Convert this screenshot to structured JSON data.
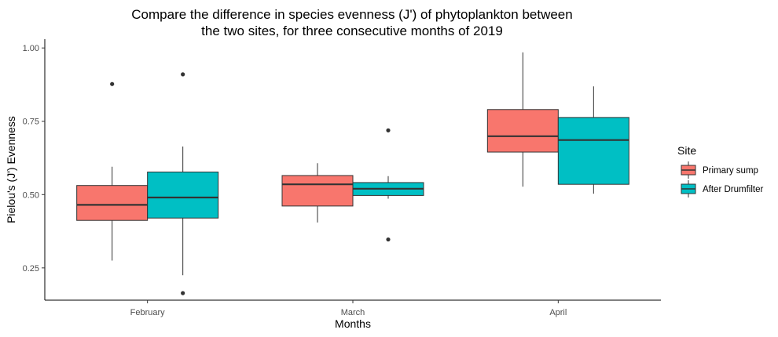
{
  "chart_data": {
    "type": "box",
    "title_lines": [
      "Compare the difference in species evenness (J') of phytoplankton between",
      "the two sites, for three consecutive months of 2019"
    ],
    "xlabel": "Months",
    "ylabel": "Pielou's (J') Evenness",
    "categories": [
      "February",
      "March",
      "April"
    ],
    "yticks": [
      0.25,
      0.5,
      0.75,
      1.0
    ],
    "ytick_labels": [
      "0.25",
      "0.50",
      "0.75",
      "1.00"
    ],
    "ylim": [
      0.14,
      1.0299
    ],
    "grid": false,
    "legend": {
      "title": "Site",
      "placement": "right"
    },
    "series": [
      {
        "name": "Primary sump",
        "color": "#F8766D",
        "boxes": [
          {
            "category": "February",
            "whisker_low": 0.275,
            "q1": 0.412,
            "median": 0.465,
            "q3": 0.531,
            "whisker_high": 0.595,
            "outliers": [
              0.877
            ]
          },
          {
            "category": "March",
            "whisker_low": 0.405,
            "q1": 0.461,
            "median": 0.535,
            "q3": 0.565,
            "whisker_high": 0.607,
            "outliers": []
          },
          {
            "category": "April",
            "whisker_low": 0.527,
            "q1": 0.645,
            "median": 0.699,
            "q3": 0.79,
            "whisker_high": 0.985,
            "outliers": []
          }
        ]
      },
      {
        "name": "After Drumfilter",
        "color": "#00BFC4",
        "boxes": [
          {
            "category": "February",
            "whisker_low": 0.225,
            "q1": 0.42,
            "median": 0.49,
            "q3": 0.577,
            "whisker_high": 0.664,
            "outliers": [
              0.91,
              0.164
            ]
          },
          {
            "category": "March",
            "whisker_low": 0.486,
            "q1": 0.497,
            "median": 0.52,
            "q3": 0.541,
            "whisker_high": 0.563,
            "outliers": [
              0.719,
              0.347
            ]
          },
          {
            "category": "April",
            "whisker_low": 0.503,
            "q1": 0.535,
            "median": 0.686,
            "q3": 0.763,
            "whisker_high": 0.869,
            "outliers": []
          }
        ]
      }
    ]
  }
}
